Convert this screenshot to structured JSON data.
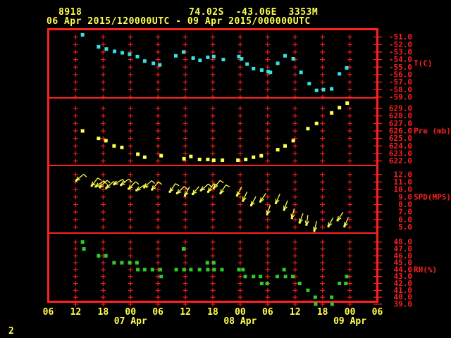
{
  "header": {
    "station_id": "8918",
    "location": "74.02S  -43.06E  3353M",
    "time_range": "06 Apr 2015/120000UTC - 09 Apr 2015/000000UTC"
  },
  "footer": {
    "page_number": "2"
  },
  "colors": {
    "background": "#000000",
    "frame_red": "#ff2020",
    "axis_red": "#ff2020",
    "text_yellow": "#ffff4e",
    "temperature": "#33e2e2",
    "pressure": "#ffff4e",
    "wind": "#ffff4e",
    "humidity": "#2dcc2d"
  },
  "chart_data": {
    "type": "scatter",
    "layout": "four stacked panels sharing one time axis, red plus-mark grid, data as small squares / wind arrows",
    "x_axis": {
      "note": "hour 0 = 06 Apr 2015 0600UTC; axis spans 72 h to 09 Apr 0600UTC",
      "range_hours": [
        0,
        72
      ],
      "tick_hours": [
        0,
        6,
        12,
        18,
        24,
        30,
        36,
        42,
        48,
        54,
        60,
        66,
        72
      ],
      "tick_labels": [
        "06",
        "12",
        "18",
        "00",
        "06",
        "12",
        "18",
        "00",
        "06",
        "12",
        "18",
        "00",
        "06"
      ],
      "date_labels": [
        {
          "hour": 18,
          "label": "07 Apr"
        },
        {
          "hour": 42,
          "label": "08 Apr"
        },
        {
          "hour": 66,
          "label": "09 Apr"
        }
      ]
    },
    "panels": [
      {
        "name": "temperature",
        "label": "T(C)",
        "label_at_value": -54.5,
        "marker": "square",
        "color_key": "temperature",
        "ylim_top": -50.1,
        "ylim_bottom": -59.1,
        "tick_values": [
          -51,
          -52,
          -53,
          -54,
          -55,
          -56,
          -57,
          -58,
          -59
        ],
        "tick_labels": [
          "-51.0",
          "-52.0",
          "-53.0",
          "-54.0",
          "-55.0",
          "-56.0",
          "-57.0",
          "-58.0",
          "-59.0"
        ],
        "points": [
          [
            7.5,
            -50.7
          ],
          [
            11.0,
            -52.3
          ],
          [
            12.7,
            -52.6
          ],
          [
            14.5,
            -52.9
          ],
          [
            16.2,
            -53.1
          ],
          [
            17.8,
            -53.3
          ],
          [
            19.5,
            -53.6
          ],
          [
            21.1,
            -54.2
          ],
          [
            23.0,
            -54.5
          ],
          [
            24.4,
            -54.7
          ],
          [
            27.9,
            -53.5
          ],
          [
            29.6,
            -53.0
          ],
          [
            31.7,
            -53.8
          ],
          [
            33.2,
            -54.1
          ],
          [
            34.9,
            -53.7
          ],
          [
            36.2,
            -53.6
          ],
          [
            38.3,
            -54.0
          ],
          [
            41.7,
            -53.6
          ],
          [
            42.3,
            -53.9
          ],
          [
            43.5,
            -54.6
          ],
          [
            44.9,
            -55.2
          ],
          [
            46.7,
            -55.4
          ],
          [
            48.1,
            -55.6
          ],
          [
            48.6,
            -55.7
          ],
          [
            50.2,
            -54.5
          ],
          [
            51.8,
            -53.5
          ],
          [
            53.6,
            -53.9
          ],
          [
            55.3,
            -55.7
          ],
          [
            57.1,
            -57.2
          ],
          [
            58.7,
            -58.1
          ],
          [
            60.2,
            -58.0
          ],
          [
            62.0,
            -57.9
          ],
          [
            63.7,
            -55.9
          ],
          [
            65.3,
            -55.1
          ]
        ]
      },
      {
        "name": "pressure",
        "label": "Pre (mb)",
        "label_at_value": 626,
        "marker": "square",
        "color_key": "pressure",
        "ylim_top": 630.4,
        "ylim_bottom": 621.4,
        "tick_values": [
          629,
          628,
          627,
          626,
          625,
          624,
          623,
          622
        ],
        "tick_labels": [
          "629.0",
          "628.0",
          "627.0",
          "626.0",
          "625.0",
          "624.0",
          "623.0",
          "622.0"
        ],
        "points": [
          [
            7.5,
            626.0
          ],
          [
            11.0,
            625.0
          ],
          [
            12.6,
            624.7
          ],
          [
            14.4,
            624.0
          ],
          [
            16.1,
            623.8
          ],
          [
            19.6,
            622.9
          ],
          [
            21.1,
            622.5
          ],
          [
            24.7,
            622.7
          ],
          [
            29.7,
            622.3
          ],
          [
            31.2,
            622.6
          ],
          [
            33.1,
            622.2
          ],
          [
            34.9,
            622.2
          ],
          [
            36.2,
            622.1
          ],
          [
            38.1,
            622.1
          ],
          [
            41.5,
            622.1
          ],
          [
            43.2,
            622.2
          ],
          [
            44.9,
            622.5
          ],
          [
            46.6,
            622.7
          ],
          [
            50.2,
            623.5
          ],
          [
            51.8,
            624.0
          ],
          [
            53.6,
            624.7
          ],
          [
            56.8,
            626.3
          ],
          [
            58.7,
            627.0
          ],
          [
            62.0,
            628.4
          ],
          [
            63.7,
            629.1
          ],
          [
            65.4,
            629.7
          ]
        ]
      },
      {
        "name": "wind_speed",
        "label": "SPD(MPS)",
        "label_at_value": 9,
        "marker": "arrow",
        "color_key": "wind",
        "angle_note": "third value = screen direction arrow points toward, degrees CCW from +x (220 = toward lower-left)",
        "ylim_top": 13.2,
        "ylim_bottom": 4.2,
        "tick_values": [
          12,
          11,
          10,
          9,
          8,
          7,
          6,
          5
        ],
        "tick_labels": [
          "12.0",
          "11.0",
          "10.0",
          "9.0",
          "8.0",
          "7.0",
          "6.0",
          "5.0"
        ],
        "points": [
          [
            6.1,
            11.2,
            220
          ],
          [
            9.5,
            10.5,
            232
          ],
          [
            10.4,
            10.4,
            215
          ],
          [
            11.3,
            10.3,
            225
          ],
          [
            12.7,
            10.2,
            222
          ],
          [
            14.4,
            10.7,
            210
          ],
          [
            15.9,
            10.6,
            218
          ],
          [
            17.6,
            10.1,
            226
          ],
          [
            19.3,
            9.9,
            214
          ],
          [
            21.0,
            10.3,
            222
          ],
          [
            22.7,
            10.0,
            230
          ],
          [
            26.6,
            9.7,
            236
          ],
          [
            28.2,
            9.5,
            224
          ],
          [
            29.9,
            9.2,
            242
          ],
          [
            31.6,
            9.4,
            230
          ],
          [
            33.4,
            9.9,
            220
          ],
          [
            35.0,
            9.7,
            236
          ],
          [
            36.2,
            10.2,
            230
          ],
          [
            37.7,
            9.5,
            238
          ],
          [
            41.3,
            9.2,
            242
          ],
          [
            42.6,
            8.5,
            246
          ],
          [
            44.4,
            7.9,
            242
          ],
          [
            46.4,
            8.4,
            236
          ],
          [
            47.9,
            6.7,
            252
          ],
          [
            49.8,
            8.2,
            246
          ],
          [
            51.6,
            7.3,
            250
          ],
          [
            53.3,
            6.2,
            256
          ],
          [
            55.0,
            5.6,
            250
          ],
          [
            56.5,
            5.3,
            262
          ],
          [
            58.2,
            4.5,
            256
          ],
          [
            61.3,
            5.1,
            242
          ],
          [
            63.3,
            5.9,
            236
          ],
          [
            64.8,
            5.1,
            246
          ]
        ]
      },
      {
        "name": "relative_humidity",
        "label": "RH(%)",
        "label_at_value": 44,
        "marker": "square",
        "color_key": "humidity",
        "ylim_top": 49.3,
        "ylim_bottom": 39.5,
        "tick_values": [
          48,
          47,
          46,
          45,
          44,
          43,
          42,
          41,
          40,
          39
        ],
        "tick_labels": [
          "48.0",
          "47.0",
          "46.0",
          "45.0",
          "44.0",
          "43.0",
          "42.0",
          "41.0",
          "40.0",
          "39.0"
        ],
        "points": [
          [
            7.5,
            48
          ],
          [
            7.8,
            47
          ],
          [
            11.0,
            46
          ],
          [
            12.6,
            46
          ],
          [
            14.4,
            45
          ],
          [
            16.1,
            45
          ],
          [
            17.8,
            45
          ],
          [
            19.4,
            45
          ],
          [
            19.6,
            44
          ],
          [
            21.1,
            44
          ],
          [
            22.8,
            44
          ],
          [
            24.5,
            44
          ],
          [
            24.7,
            43
          ],
          [
            28.0,
            44
          ],
          [
            29.6,
            47
          ],
          [
            29.7,
            44
          ],
          [
            31.2,
            44
          ],
          [
            33.1,
            44
          ],
          [
            34.8,
            45
          ],
          [
            34.9,
            44
          ],
          [
            36.2,
            45
          ],
          [
            36.3,
            44
          ],
          [
            38.0,
            44
          ],
          [
            41.7,
            44
          ],
          [
            42.6,
            44
          ],
          [
            43.1,
            43
          ],
          [
            44.9,
            43
          ],
          [
            46.4,
            43
          ],
          [
            46.7,
            42
          ],
          [
            47.9,
            42
          ],
          [
            50.1,
            43
          ],
          [
            51.6,
            44
          ],
          [
            51.9,
            43
          ],
          [
            53.5,
            43
          ],
          [
            55.0,
            42
          ],
          [
            56.8,
            41
          ],
          [
            58.4,
            40
          ],
          [
            58.5,
            39
          ],
          [
            62.0,
            40
          ],
          [
            62.1,
            39
          ],
          [
            63.7,
            42
          ],
          [
            65.1,
            42
          ],
          [
            65.3,
            43
          ]
        ]
      }
    ]
  }
}
